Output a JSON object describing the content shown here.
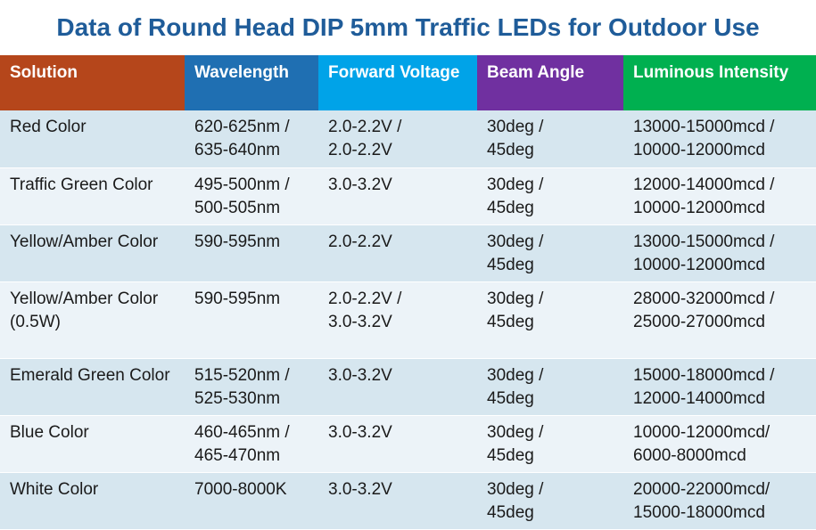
{
  "title": "Data of Round Head DIP 5mm Traffic LEDs for Outdoor Use",
  "colors": {
    "title": "#1f5c99",
    "header_solution": "#b5461b",
    "header_wavelength": "#1f6fb2",
    "header_forward_voltage": "#00a3e8",
    "header_beam_angle": "#7030a0",
    "header_luminous_intensity": "#00b050",
    "row_dark": "#d6e6ef",
    "row_light": "#ecf3f8"
  },
  "headers": [
    "Solution",
    "Wavelength",
    "Forward Voltage",
    "Beam Angle",
    "Luminous Intensity"
  ],
  "rows": [
    {
      "solution": [
        "Red Color"
      ],
      "wavelength": [
        "620-625nm /",
        "635-640nm"
      ],
      "voltage": [
        "2.0-2.2V /",
        "2.0-2.2V"
      ],
      "beam": [
        "30deg /",
        "45deg"
      ],
      "intensity": [
        "13000-15000mcd /",
        "10000-12000mcd"
      ]
    },
    {
      "solution": [
        "Traffic Green Color"
      ],
      "wavelength": [
        "495-500nm /",
        "500-505nm"
      ],
      "voltage": [
        "3.0-3.2V"
      ],
      "beam": [
        "30deg /",
        "45deg"
      ],
      "intensity": [
        "12000-14000mcd /",
        "10000-12000mcd"
      ]
    },
    {
      "solution": [
        "Yellow/Amber Color"
      ],
      "wavelength": [
        "590-595nm"
      ],
      "voltage": [
        "2.0-2.2V"
      ],
      "beam": [
        "30deg /",
        "45deg"
      ],
      "intensity": [
        "13000-15000mcd /",
        "10000-12000mcd"
      ]
    },
    {
      "solution": [
        "Yellow/Amber Color",
        "(0.5W)"
      ],
      "wavelength": [
        "590-595nm"
      ],
      "voltage": [
        "2.0-2.2V /",
        "3.0-3.2V"
      ],
      "beam": [
        "30deg /",
        "45deg"
      ],
      "intensity": [
        "28000-32000mcd /",
        "25000-27000mcd"
      ]
    },
    {
      "solution": [
        "Emerald Green Color"
      ],
      "wavelength": [
        "515-520nm /",
        "525-530nm"
      ],
      "voltage": [
        "3.0-3.2V"
      ],
      "beam": [
        "30deg /",
        "45deg"
      ],
      "intensity": [
        "15000-18000mcd /",
        "12000-14000mcd"
      ]
    },
    {
      "solution": [
        "Blue Color"
      ],
      "wavelength": [
        "460-465nm /",
        "465-470nm"
      ],
      "voltage": [
        "3.0-3.2V"
      ],
      "beam": [
        "30deg  /",
        "45deg"
      ],
      "intensity": [
        "10000-12000mcd/",
        "6000-8000mcd"
      ]
    },
    {
      "solution": [
        "White Color"
      ],
      "wavelength": [
        "7000-8000K"
      ],
      "voltage": [
        "3.0-3.2V"
      ],
      "beam": [
        "30deg /",
        "45deg"
      ],
      "intensity": [
        "20000-22000mcd/",
        "15000-18000mcd"
      ]
    }
  ]
}
